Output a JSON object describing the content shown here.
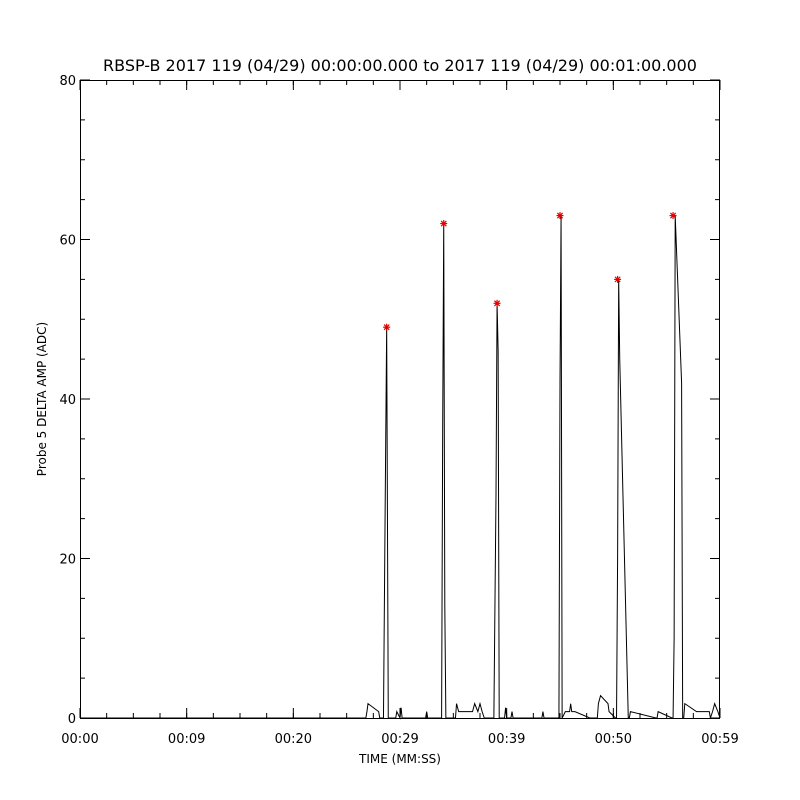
{
  "chart_data": {
    "type": "line",
    "title": "RBSP-B 2017 119 (04/29) 00:00:00.000 to 2017 119 (04/29) 00:01:00.000",
    "xlabel": "TIME (MM:SS)",
    "ylabel": "Probe 5 DELTA AMP (ADC)",
    "xlim": [
      0,
      60
    ],
    "ylim": [
      0,
      80
    ],
    "x_ticks": [
      {
        "value": 0,
        "label": "00:00"
      },
      {
        "value": 10,
        "label": "00:09"
      },
      {
        "value": 20,
        "label": "00:20"
      },
      {
        "value": 30,
        "label": "00:29"
      },
      {
        "value": 40,
        "label": "00:39"
      },
      {
        "value": 50,
        "label": "00:50"
      },
      {
        "value": 60,
        "label": "00:59"
      }
    ],
    "y_ticks": [
      {
        "value": 0,
        "label": "0"
      },
      {
        "value": 20,
        "label": "20"
      },
      {
        "value": 40,
        "label": "40"
      },
      {
        "value": 60,
        "label": "60"
      },
      {
        "value": 80,
        "label": "80"
      }
    ],
    "y_minor_step": 5,
    "x_minor_step": 2.5,
    "series": [
      {
        "color": "#000000",
        "x": [
          0,
          26.8,
          26.9,
          27.0,
          28.0,
          28.1,
          28.45,
          28.6,
          28.75,
          28.9,
          29.6,
          29.7,
          30.0,
          30.1,
          30.2,
          32.4,
          32.5,
          32.6,
          33.9,
          34.0,
          34.1,
          34.2,
          34.3,
          35.2,
          35.3,
          35.5,
          36.8,
          37.0,
          37.3,
          37.5,
          37.7,
          37.9,
          38.2,
          38.8,
          39.0,
          39.1,
          39.2,
          39.3,
          39.8,
          39.9,
          40.0,
          40.4,
          40.5,
          40.6,
          43.3,
          43.4,
          43.5,
          44.9,
          45.0,
          45.1,
          45.2,
          45.5,
          45.9,
          46.0,
          46.1,
          46.4,
          47.8,
          48.5,
          48.6,
          48.8,
          49.5,
          49.6,
          50.2,
          50.3,
          50.4,
          50.5,
          50.6,
          51.4,
          51.5,
          51.6,
          54.0,
          54.1,
          54.2,
          55.5,
          55.6,
          55.7,
          55.8,
          56.4,
          56.5,
          56.6,
          56.7,
          57.8,
          59.0,
          59.1,
          59.3,
          59.5,
          59.8,
          60.0
        ],
        "y": [
          0,
          0,
          0.8,
          1.8,
          0.8,
          0,
          0,
          25,
          49,
          0,
          0,
          0.8,
          0,
          1.3,
          0,
          0,
          0.8,
          0,
          0,
          36,
          62,
          14,
          0,
          0,
          1.8,
          0.8,
          0.8,
          1.8,
          0.8,
          1.8,
          0.8,
          0,
          0,
          0,
          28,
          52,
          46,
          0,
          0,
          1.3,
          0,
          0,
          0.8,
          0,
          0,
          0.8,
          0,
          0,
          42,
          63,
          0,
          0.8,
          0.8,
          1.8,
          0.8,
          0.8,
          0,
          0,
          1.8,
          2.8,
          1.8,
          0.8,
          0,
          0,
          20,
          55,
          45,
          0,
          0,
          0.8,
          0,
          0,
          0.8,
          0,
          0,
          10,
          63,
          42,
          0,
          0,
          1.8,
          0.8,
          0.8,
          0,
          0.8,
          1.8,
          0.8,
          0
        ]
      }
    ],
    "peak_markers": {
      "color": "#e00000",
      "symbol": "asterisk",
      "points": [
        {
          "x": 28.75,
          "y": 49
        },
        {
          "x": 34.1,
          "y": 62
        },
        {
          "x": 39.1,
          "y": 52
        },
        {
          "x": 45.0,
          "y": 63
        },
        {
          "x": 50.4,
          "y": 55
        },
        {
          "x": 55.6,
          "y": 63
        }
      ]
    }
  }
}
